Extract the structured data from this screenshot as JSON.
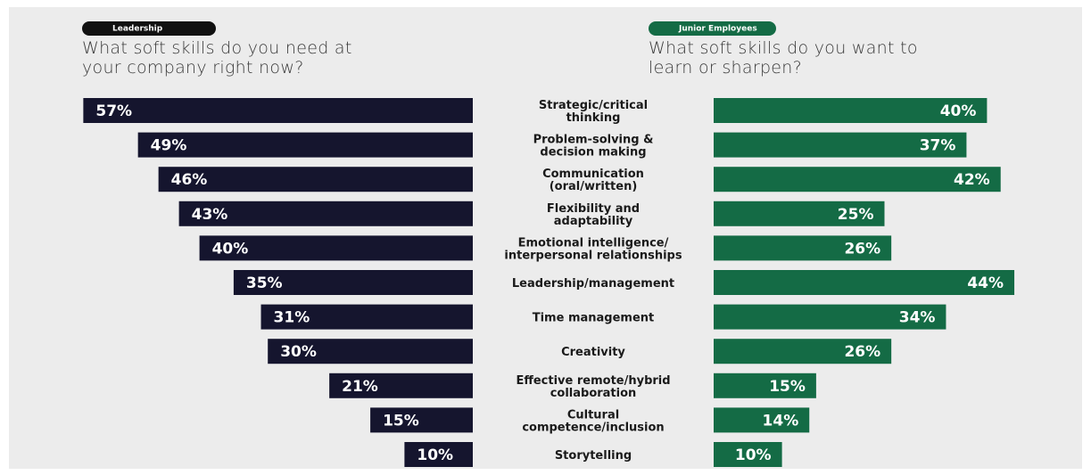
{
  "chart_data": {
    "type": "bar",
    "categories": [
      "Strategic/critical\nthinking",
      "Problem-solving &\ndecision making",
      "Communication\n(oral/written)",
      "Flexibility and\nadaptability",
      "Emotional intelligence/\ninterpersonal relationships",
      "Leadership/management",
      "Time management",
      "Creativity",
      "Effective remote/hybrid\ncollaboration",
      "Cultural\ncompetence/inclusion",
      "Storytelling"
    ],
    "series": [
      {
        "name": "Leadership",
        "question": "What soft skills do you need at\nyour company right now?",
        "color": "#15152e",
        "values": [
          57,
          49,
          46,
          43,
          40,
          35,
          31,
          30,
          21,
          15,
          10
        ],
        "value_labels": [
          "57%",
          "49%",
          "46%",
          "43%",
          "40%",
          "35%",
          "31%",
          "30%",
          "21%",
          "15%",
          "10%"
        ]
      },
      {
        "name": "Junior Employees",
        "question": "What soft skills do you want to\nlearn or sharpen?",
        "color": "#146b45",
        "values": [
          40,
          37,
          42,
          25,
          26,
          44,
          34,
          26,
          15,
          14,
          10
        ],
        "value_labels": [
          "40%",
          "37%",
          "42%",
          "25%",
          "26%",
          "44%",
          "34%",
          "26%",
          "15%",
          "14%",
          "10%"
        ]
      }
    ]
  }
}
